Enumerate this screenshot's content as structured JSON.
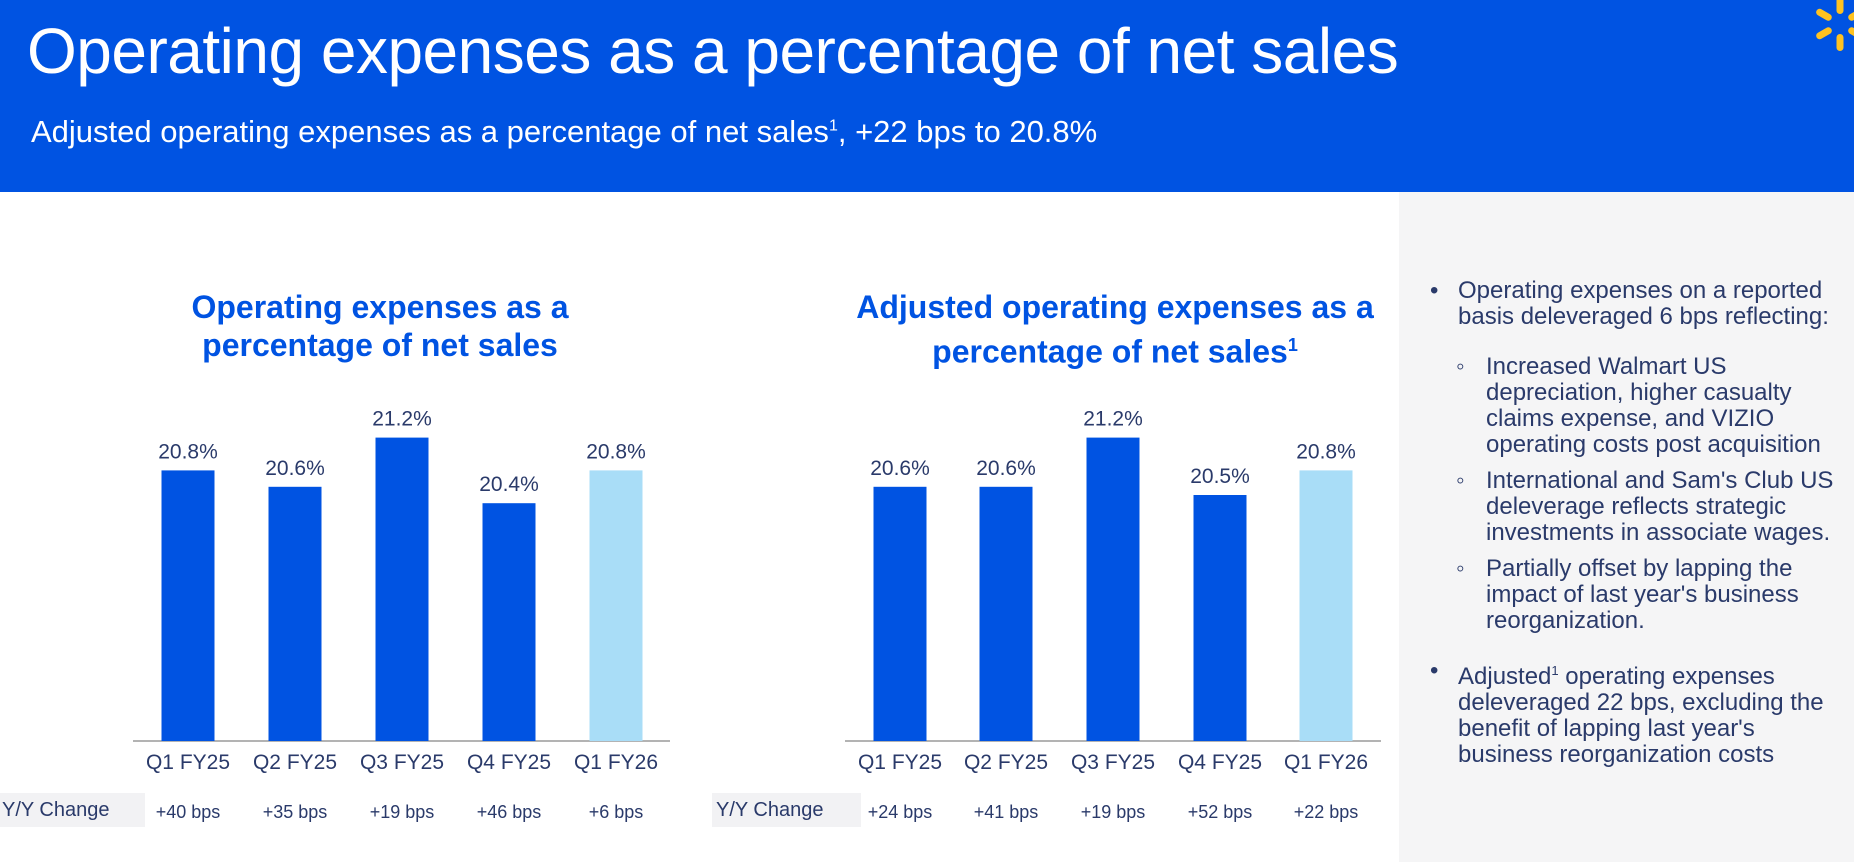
{
  "header": {
    "title": "Operating expenses as a percentage of net sales",
    "subtitle_main": "Adjusted operating expenses as a percentage of net sales",
    "subtitle_sup": "1",
    "subtitle_tail": ", +22 bps to 20.8%"
  },
  "chart_data": [
    {
      "type": "bar",
      "title": "Operating expenses as a percentage of net sales",
      "categories": [
        "Q1 FY25",
        "Q2 FY25",
        "Q3 FY25",
        "Q4 FY25",
        "Q1 FY26"
      ],
      "values": [
        20.8,
        20.6,
        21.2,
        20.4,
        20.8
      ],
      "value_labels": [
        "20.8%",
        "20.6%",
        "21.2%",
        "20.4%",
        "20.8%"
      ],
      "highlight_index": 4,
      "yy_label": "Y/Y Change",
      "yy_values": [
        "+40 bps",
        "+35 bps",
        "+19 bps",
        "+46 bps",
        "+6 bps"
      ],
      "ylim": [
        17.5,
        21.5
      ],
      "xlabel": "",
      "ylabel": ""
    },
    {
      "type": "bar",
      "title": "Adjusted operating expenses as a percentage of net sales",
      "title_sup": "1",
      "categories": [
        "Q1 FY25",
        "Q2 FY25",
        "Q3 FY25",
        "Q4 FY25",
        "Q1 FY26"
      ],
      "values": [
        20.6,
        20.6,
        21.2,
        20.5,
        20.8
      ],
      "value_labels": [
        "20.6%",
        "20.6%",
        "21.2%",
        "20.5%",
        "20.8%"
      ],
      "highlight_index": 4,
      "yy_label": "Y/Y Change",
      "yy_values": [
        "+24 bps",
        "+41 bps",
        "+19 bps",
        "+52 bps",
        "+22 bps"
      ],
      "ylim": [
        17.5,
        21.5
      ],
      "xlabel": "",
      "ylabel": ""
    }
  ],
  "colors": {
    "bar": "#0053e2",
    "bar_highlight": "#a9ddf7",
    "header": "#0053e2",
    "spark": "#ffc220"
  },
  "icons": {
    "logo": "spark-icon"
  },
  "commentary": {
    "b1": "Operating expenses on a reported basis deleveraged  6 bps reflecting:",
    "s1": "Increased Walmart US depreciation, higher casualty claims expense, and VIZIO operating costs post acquisition",
    "s2": "International and Sam's Club US deleverage reflects strategic investments in associate wages.",
    "s3": "Partially offset by lapping the impact of last year's business reorganization.",
    "b2_pre": "Adjusted",
    "b2_sup": "1",
    "b2_post": " operating expenses deleveraged 22 bps, excluding the benefit of lapping last year's business reorganization costs"
  }
}
